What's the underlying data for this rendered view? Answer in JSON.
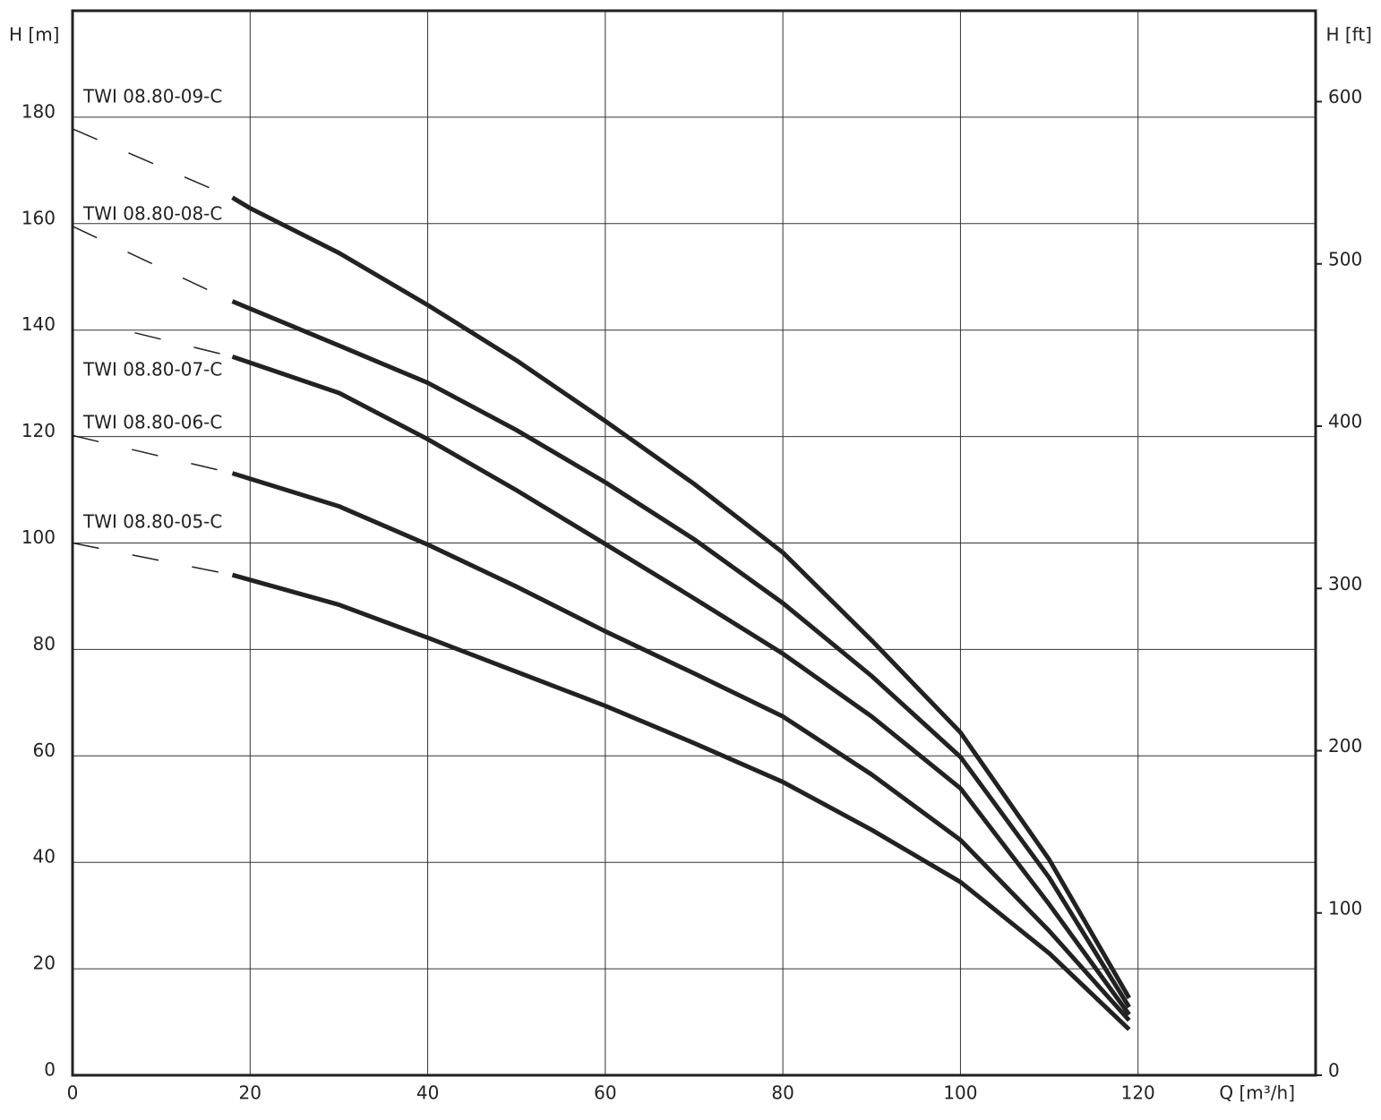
{
  "chart_data": {
    "type": "line",
    "y_label": "H [m]",
    "y2_label": "H [ft]",
    "x_label": "Q [m³/h]",
    "xlim": [
      0,
      140
    ],
    "xticks": [
      0,
      20,
      40,
      60,
      80,
      100,
      120
    ],
    "ylim": [
      0,
      200
    ],
    "yticks": [
      0,
      20,
      40,
      60,
      80,
      100,
      120,
      140,
      160,
      180
    ],
    "y2lim": [
      0,
      656
    ],
    "y2ticks": [
      0,
      100,
      200,
      300,
      400,
      500,
      600
    ],
    "grid": true,
    "series": [
      {
        "name": "TWI 08.80-09-C",
        "color": "#222222",
        "dashed_x": [
          0,
          18
        ],
        "dashed_values": [
          177.8,
          164.9
        ],
        "x": [
          18,
          20,
          30,
          40,
          50,
          60,
          70,
          80,
          90,
          100,
          110,
          119
        ],
        "values": [
          164.9,
          162.9,
          154.5,
          144.7,
          134.3,
          122.9,
          111.1,
          98.2,
          81.7,
          64.4,
          40.5,
          14.5
        ]
      },
      {
        "name": "TWI 08.80-08-C",
        "color": "#222222",
        "dashed_x": [
          0,
          18
        ],
        "dashed_values": [
          159.5,
          145.4
        ],
        "x": [
          18,
          30,
          40,
          50,
          60,
          70,
          80,
          90,
          100,
          110,
          119
        ],
        "values": [
          145.4,
          137.1,
          130.1,
          121.2,
          111.4,
          100.7,
          88.7,
          75.0,
          59.8,
          37.1,
          12.8
        ]
      },
      {
        "name": "TWI 08.80-07-C",
        "color": "#222222",
        "dashed_x": [
          7,
          18
        ],
        "dashed_values": [
          139.5,
          135
        ],
        "x": [
          18,
          30,
          40,
          50,
          60,
          70,
          80,
          90,
          100,
          110,
          119
        ],
        "values": [
          135,
          128.2,
          119.5,
          109.9,
          99.8,
          89.6,
          79.2,
          67.4,
          53.9,
          32.1,
          11.4
        ]
      },
      {
        "name": "TWI 08.80-06-C",
        "color": "#222222",
        "dashed_x": [
          0,
          18
        ],
        "dashed_values": [
          120.2,
          113.1
        ],
        "x": [
          18,
          30,
          40,
          50,
          60,
          70,
          80,
          90,
          100,
          110,
          119
        ],
        "values": [
          113.1,
          106.9,
          99.7,
          91.8,
          83.4,
          75.5,
          67.4,
          56.5,
          44.2,
          27.1,
          10.3
        ]
      },
      {
        "name": "TWI 08.80-05-C",
        "color": "#222222",
        "dashed_x": [
          0,
          18
        ],
        "dashed_values": [
          100,
          94
        ],
        "x": [
          18,
          30,
          40,
          50,
          60,
          70,
          80,
          90,
          100,
          110,
          119
        ],
        "values": [
          94,
          88.4,
          82.2,
          75.8,
          69.4,
          62.4,
          55.1,
          46.1,
          36.3,
          22.9,
          8.6
        ]
      }
    ]
  }
}
